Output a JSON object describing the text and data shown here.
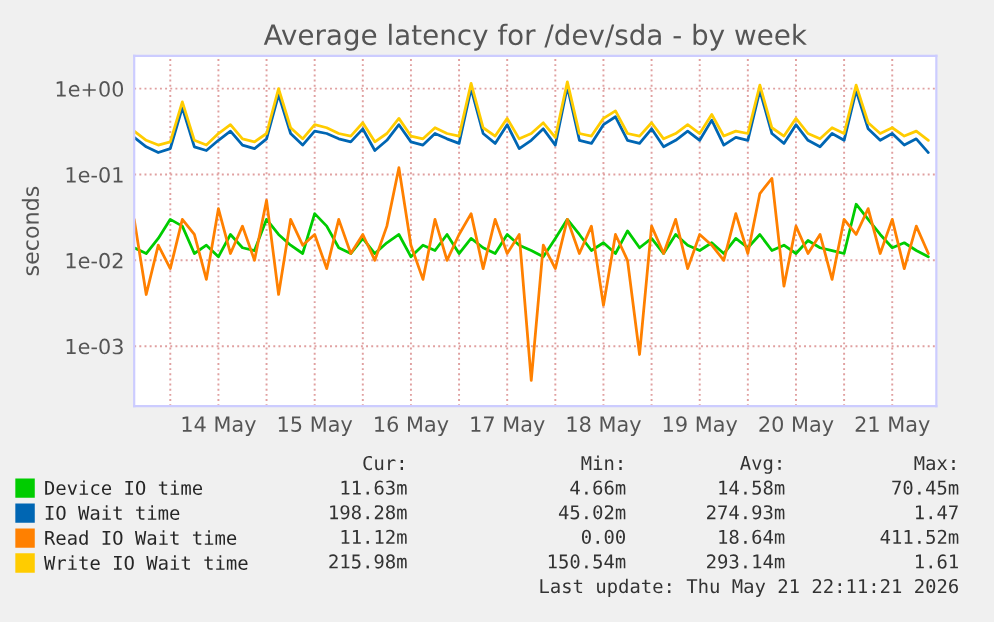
{
  "chart_data": {
    "type": "line",
    "title": "Average latency for /dev/sda - by week",
    "ylabel": "seconds",
    "x": [
      "2026-05-13T15:00",
      "2026-05-13T18:00",
      "2026-05-13T21:00",
      "2026-05-14T00:00",
      "2026-05-14T03:00",
      "2026-05-14T06:00",
      "2026-05-14T09:00",
      "2026-05-14T12:00",
      "2026-05-14T15:00",
      "2026-05-14T18:00",
      "2026-05-14T21:00",
      "2026-05-15T00:00",
      "2026-05-15T03:00",
      "2026-05-15T06:00",
      "2026-05-15T09:00",
      "2026-05-15T12:00",
      "2026-05-15T15:00",
      "2026-05-15T18:00",
      "2026-05-15T21:00",
      "2026-05-16T00:00",
      "2026-05-16T03:00",
      "2026-05-16T06:00",
      "2026-05-16T09:00",
      "2026-05-16T12:00",
      "2026-05-16T15:00",
      "2026-05-16T18:00",
      "2026-05-16T21:00",
      "2026-05-17T00:00",
      "2026-05-17T03:00",
      "2026-05-17T06:00",
      "2026-05-17T09:00",
      "2026-05-17T12:00",
      "2026-05-17T15:00",
      "2026-05-17T18:00",
      "2026-05-17T21:00",
      "2026-05-18T00:00",
      "2026-05-18T03:00",
      "2026-05-18T06:00",
      "2026-05-18T09:00",
      "2026-05-18T12:00",
      "2026-05-18T15:00",
      "2026-05-18T18:00",
      "2026-05-18T21:00",
      "2026-05-19T00:00",
      "2026-05-19T03:00",
      "2026-05-19T06:00",
      "2026-05-19T09:00",
      "2026-05-19T12:00",
      "2026-05-19T15:00",
      "2026-05-19T18:00",
      "2026-05-19T21:00",
      "2026-05-20T00:00",
      "2026-05-20T03:00",
      "2026-05-20T06:00",
      "2026-05-20T09:00",
      "2026-05-20T12:00",
      "2026-05-20T15:00",
      "2026-05-20T18:00",
      "2026-05-20T21:00",
      "2026-05-21T00:00",
      "2026-05-21T03:00",
      "2026-05-21T06:00",
      "2026-05-21T09:00",
      "2026-05-21T12:00",
      "2026-05-21T15:00",
      "2026-05-21T18:00",
      "2026-05-21T21:00"
    ],
    "series": [
      {
        "name": "Device IO time",
        "color": "#00cc00",
        "values": [
          0.014,
          0.012,
          0.018,
          0.03,
          0.025,
          0.012,
          0.015,
          0.011,
          0.02,
          0.014,
          0.013,
          0.03,
          0.02,
          0.015,
          0.012,
          0.035,
          0.025,
          0.014,
          0.012,
          0.018,
          0.012,
          0.016,
          0.02,
          0.011,
          0.015,
          0.013,
          0.02,
          0.012,
          0.018,
          0.014,
          0.012,
          0.02,
          0.015,
          0.013,
          0.011,
          0.018,
          0.03,
          0.02,
          0.013,
          0.016,
          0.012,
          0.022,
          0.014,
          0.018,
          0.012,
          0.02,
          0.015,
          0.013,
          0.016,
          0.012,
          0.018,
          0.014,
          0.02,
          0.013,
          0.015,
          0.012,
          0.017,
          0.014,
          0.013,
          0.012,
          0.045,
          0.03,
          0.02,
          0.014,
          0.016,
          0.013,
          0.011
        ]
      },
      {
        "name": "IO Wait time",
        "color": "#0066b3",
        "values": [
          0.27,
          0.21,
          0.18,
          0.2,
          0.6,
          0.21,
          0.19,
          0.25,
          0.32,
          0.22,
          0.2,
          0.26,
          0.85,
          0.3,
          0.22,
          0.32,
          0.3,
          0.26,
          0.24,
          0.34,
          0.19,
          0.25,
          0.38,
          0.24,
          0.22,
          0.3,
          0.26,
          0.23,
          1.0,
          0.3,
          0.23,
          0.38,
          0.2,
          0.25,
          0.34,
          0.22,
          1.05,
          0.25,
          0.23,
          0.38,
          0.47,
          0.25,
          0.23,
          0.34,
          0.21,
          0.25,
          0.32,
          0.25,
          0.43,
          0.22,
          0.27,
          0.25,
          0.95,
          0.3,
          0.23,
          0.38,
          0.25,
          0.21,
          0.3,
          0.25,
          0.95,
          0.34,
          0.25,
          0.3,
          0.22,
          0.26,
          0.18
        ]
      },
      {
        "name": "Read IO Wait time",
        "color": "#ff8000",
        "values": [
          0.03,
          0.004,
          0.015,
          0.008,
          0.03,
          0.02,
          0.006,
          0.04,
          0.012,
          0.025,
          0.01,
          0.05,
          0.004,
          0.03,
          0.015,
          0.02,
          0.008,
          0.03,
          0.012,
          0.02,
          0.01,
          0.025,
          0.12,
          0.015,
          0.006,
          0.03,
          0.01,
          0.02,
          0.035,
          0.008,
          0.03,
          0.012,
          0.02,
          0.0004,
          0.015,
          0.008,
          0.03,
          0.012,
          0.025,
          0.003,
          0.02,
          0.01,
          0.0008,
          0.025,
          0.012,
          0.03,
          0.008,
          0.02,
          0.015,
          0.01,
          0.035,
          0.012,
          0.06,
          0.09,
          0.005,
          0.025,
          0.012,
          0.02,
          0.006,
          0.03,
          0.02,
          0.04,
          0.012,
          0.03,
          0.008,
          0.025,
          0.012
        ]
      },
      {
        "name": "Write IO Wait time",
        "color": "#ffcc00",
        "values": [
          0.32,
          0.25,
          0.22,
          0.24,
          0.7,
          0.25,
          0.22,
          0.3,
          0.38,
          0.26,
          0.24,
          0.3,
          1.0,
          0.35,
          0.26,
          0.38,
          0.35,
          0.3,
          0.28,
          0.4,
          0.24,
          0.3,
          0.45,
          0.28,
          0.26,
          0.35,
          0.3,
          0.28,
          1.15,
          0.35,
          0.28,
          0.45,
          0.26,
          0.3,
          0.4,
          0.27,
          1.2,
          0.3,
          0.28,
          0.45,
          0.55,
          0.3,
          0.28,
          0.4,
          0.26,
          0.3,
          0.38,
          0.3,
          0.5,
          0.28,
          0.32,
          0.3,
          1.1,
          0.35,
          0.28,
          0.45,
          0.3,
          0.26,
          0.35,
          0.3,
          1.1,
          0.4,
          0.3,
          0.35,
          0.28,
          0.32,
          0.25
        ]
      }
    ],
    "log": true,
    "ylim": [
      0.0002,
      2.4
    ],
    "yticks": [
      {
        "value": 0.001,
        "label": "1e-03"
      },
      {
        "value": 0.01,
        "label": "1e-02"
      },
      {
        "value": 0.1,
        "label": "1e-01"
      },
      {
        "value": 1,
        "label": "1e+00"
      }
    ],
    "xlim": [
      "2026-05-13T15:00",
      "2026-05-21T23:00"
    ],
    "xticks": [
      {
        "value": "2026-05-14T00:00",
        "label": null
      },
      {
        "value": "2026-05-14T12:00",
        "label": "14 May"
      },
      {
        "value": "2026-05-15T00:00",
        "label": null
      },
      {
        "value": "2026-05-15T12:00",
        "label": "15 May"
      },
      {
        "value": "2026-05-16T00:00",
        "label": null
      },
      {
        "value": "2026-05-16T12:00",
        "label": "16 May"
      },
      {
        "value": "2026-05-17T00:00",
        "label": null
      },
      {
        "value": "2026-05-17T12:00",
        "label": "17 May"
      },
      {
        "value": "2026-05-18T00:00",
        "label": null
      },
      {
        "value": "2026-05-18T12:00",
        "label": "18 May"
      },
      {
        "value": "2026-05-19T00:00",
        "label": null
      },
      {
        "value": "2026-05-19T12:00",
        "label": "19 May"
      },
      {
        "value": "2026-05-20T00:00",
        "label": null
      },
      {
        "value": "2026-05-20T12:00",
        "label": "20 May"
      },
      {
        "value": "2026-05-21T00:00",
        "label": null
      },
      {
        "value": "2026-05-21T12:00",
        "label": "21 May"
      }
    ],
    "grid": true,
    "legend": "bottom",
    "marker": "none",
    "line_style": "solid",
    "annotations": [
      "Cur:",
      "Min:",
      "Avg:",
      "Max:",
      "11.63m",
      "4.66m",
      "14.58m",
      "70.45m",
      "198.28m",
      "45.02m",
      "274.93m",
      "1.47",
      "11.12m",
      "0.00",
      "18.64m",
      "411.52m",
      "215.98m",
      "150.54m",
      "293.14m",
      "1.61",
      "Last update: Thu May 21 22:11:21 2026"
    ]
  }
}
